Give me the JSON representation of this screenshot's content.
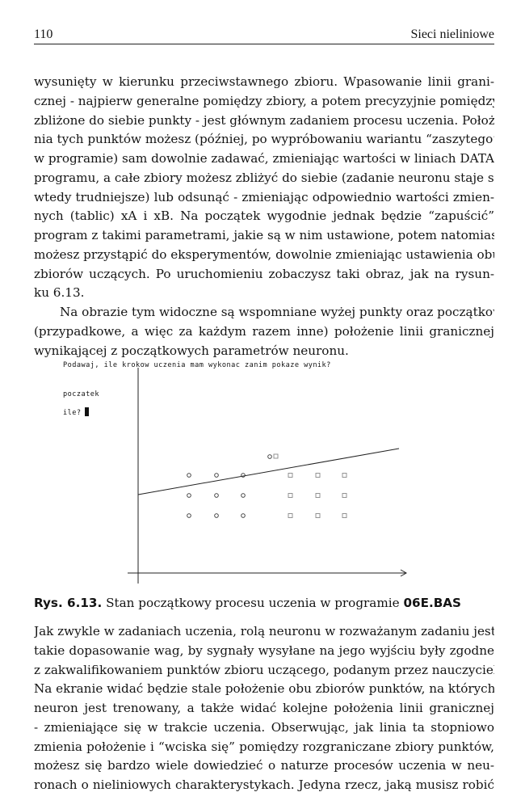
{
  "header": {
    "page_number": "110",
    "section_title": "Sieci nieliniowe"
  },
  "paragraphs_top": [
    [
      "wysunięty w  kierunku przeciwstawnego zbioru.  Wpasowanie linii grani-",
      "cznej - najpierw generalne pomiędzy zbiory, a potem precyzyjnie pomiędzy",
      "zbliżone do siebie punkty - jest głównym zadaniem procesu uczenia. Położe-",
      "nia tych punktów możesz (później, po wypróbowaniu wariantu “zaszytego”",
      "w programie) sam dowolnie zadawać, zmieniając wartości w liniach DATA",
      "programu, a  całe zbiory możesz zbliżyć do siebie (zadanie neuronu staje się",
      "wtedy trudniejsze) lub odsunąć - zmieniając odpowiednio wartości zmien-",
      "nych (tablic) xA i xB.  Na początek wygodnie jednak będzie “zapuścić”",
      "program z takimi parametrami, jakie są w nim ustawione, potem natomiast",
      "możesz przystąpić do eksperymentów, dowolnie zmieniając ustawienia obu",
      "zbiorów uczących.  Po uruchomieniu zobaczysz taki obraz, jak na rysun-",
      "ku 6.13."
    ],
    [
      "Na obrazie tym widoczne są wspomniane wyżej punkty oraz początkowe",
      "(przypadkowe, a więc za każdym razem inne) położenie linii granicznej",
      "wynikającej z początkowych parametrów neuronu."
    ]
  ],
  "figure": {
    "screen_prompt": "Podawaj, ile krokow uczenia mam wykonac zanim pokaze wynik?",
    "screen_status": "poczatek",
    "screen_input_label": "ile?"
  },
  "caption": {
    "label": "Rys. 6.13.",
    "text": " Stan początkowy procesu uczenia w programie ",
    "program": "06E.BAS"
  },
  "paragraphs_bottom": [
    [
      "Jak zwykle w zadaniach uczenia, rolą neuronu w rozważanym zadaniu jest",
      "takie dopasowanie wag, by sygnały wysyłane na jego wyjściu były zgodne",
      "z zakwalifikowaniem punktów zbioru uczącego, podanym przez nauczyciela.",
      "Na ekranie widać będzie stale położenie obu zbiorów punktów, na których",
      "neuron jest trenowany, a także widać kolejne położenia linii granicznej",
      "- zmieniające się w trakcie uczenia.  Obserwując, jak linia ta stopniowo",
      "zmienia położenie i “wciska się” pomiędzy rozgraniczane zbiory punktów,",
      "możesz się bardzo wiele dowiedzieć o naturze procesów uczenia w neu-",
      "ronach o nieliniowych charakterystykach.  Jedyna rzecz, jaką musisz robić"
    ]
  ]
}
